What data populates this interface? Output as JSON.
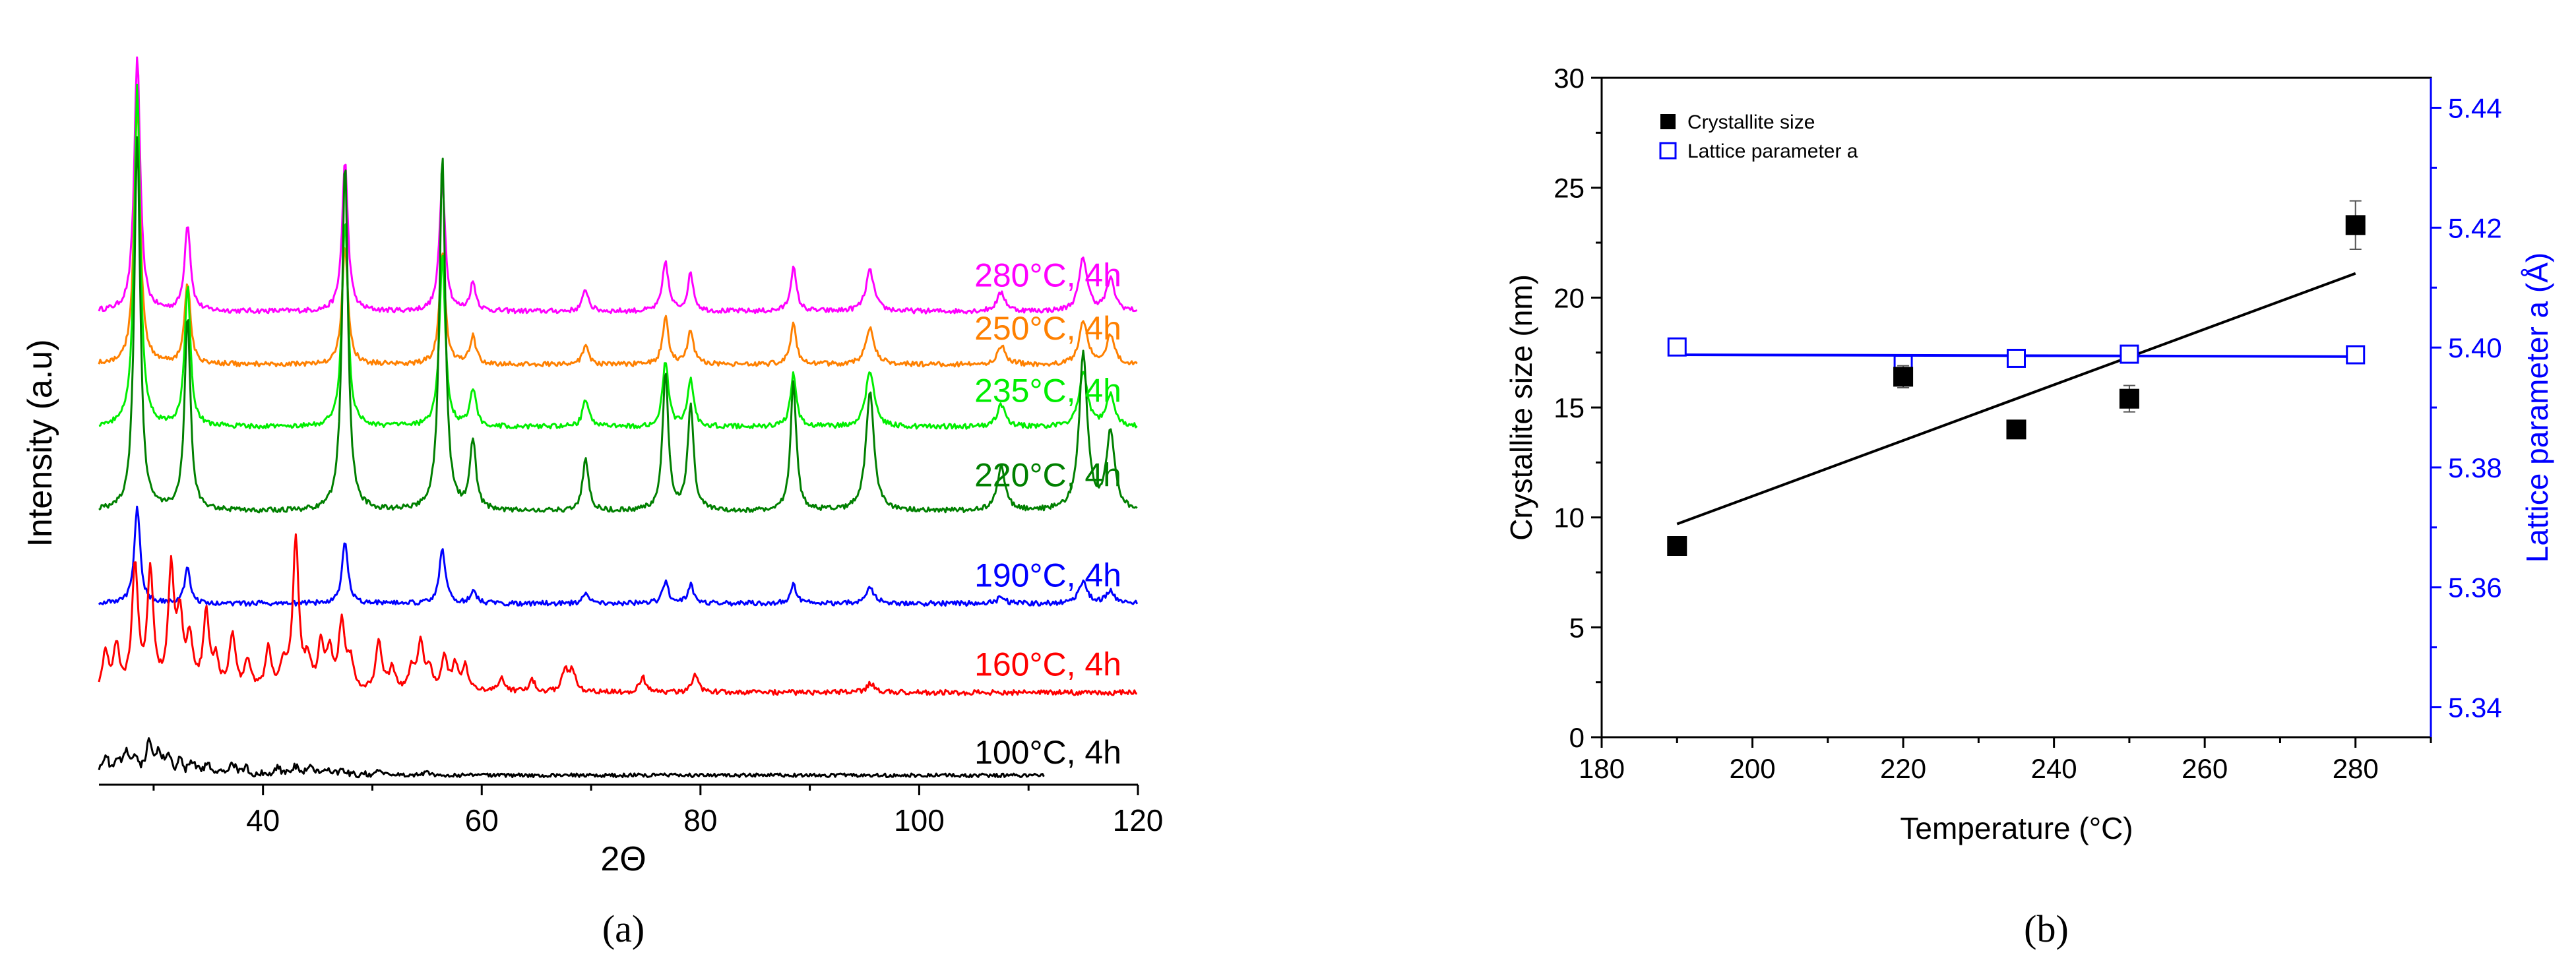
{
  "chart_data": [
    {
      "type": "line",
      "panel_label": "(a)",
      "xlabel": "2Θ",
      "ylabel": "Intensity (a.u)",
      "xlim": [
        25,
        120
      ],
      "x_ticks": [
        40,
        60,
        80,
        100,
        120
      ],
      "series": [
        {
          "name": "280°C, 4h",
          "color": "#ff00ff",
          "baseline": 0.875,
          "end_x": 120,
          "peaks": [
            [
              28.5,
              0.82
            ],
            [
              33.1,
              0.28
            ],
            [
              47.5,
              0.48
            ],
            [
              56.4,
              0.42
            ],
            [
              59.2,
              0.09
            ],
            [
              69.5,
              0.07
            ],
            [
              76.8,
              0.16
            ],
            [
              79.1,
              0.12
            ],
            [
              88.5,
              0.14
            ],
            [
              95.5,
              0.13
            ],
            [
              107.5,
              0.06
            ],
            [
              115.0,
              0.17
            ],
            [
              117.5,
              0.1
            ]
          ]
        },
        {
          "name": "250°C, 4h",
          "color": "#ff8000",
          "baseline": 0.705,
          "end_x": 120,
          "peaks": [
            [
              28.5,
              0.85
            ],
            [
              33.1,
              0.26
            ],
            [
              47.5,
              0.38
            ],
            [
              56.4,
              0.36
            ],
            [
              59.2,
              0.09
            ],
            [
              69.5,
              0.06
            ],
            [
              76.8,
              0.15
            ],
            [
              79.1,
              0.11
            ],
            [
              88.5,
              0.13
            ],
            [
              95.5,
              0.12
            ],
            [
              107.5,
              0.06
            ],
            [
              115.0,
              0.14
            ],
            [
              117.5,
              0.09
            ]
          ]
        },
        {
          "name": "235°C, 4h",
          "color": "#00ee00",
          "baseline": 0.505,
          "end_x": 120,
          "peaks": [
            [
              28.5,
              1.1
            ],
            [
              33.1,
              0.45
            ],
            [
              47.5,
              0.67
            ],
            [
              56.4,
              0.55
            ],
            [
              59.2,
              0.12
            ],
            [
              69.5,
              0.09
            ],
            [
              76.8,
              0.21
            ],
            [
              79.1,
              0.15
            ],
            [
              88.5,
              0.17
            ],
            [
              95.5,
              0.18
            ],
            [
              107.5,
              0.07
            ],
            [
              115.0,
              0.18
            ],
            [
              117.5,
              0.1
            ]
          ]
        },
        {
          "name": "220°C, 4h",
          "color": "#008000",
          "baseline": 0.235,
          "end_x": 120,
          "peaks": [
            [
              28.5,
              1.2
            ],
            [
              33.1,
              0.62
            ],
            [
              47.5,
              1.12
            ],
            [
              56.4,
              1.15
            ],
            [
              59.2,
              0.22
            ],
            [
              69.5,
              0.17
            ],
            [
              76.8,
              0.44
            ],
            [
              79.1,
              0.34
            ],
            [
              88.5,
              0.41
            ],
            [
              95.5,
              0.38
            ],
            [
              107.5,
              0.14
            ],
            [
              115.0,
              0.5
            ],
            [
              117.5,
              0.25
            ]
          ]
        },
        {
          "name": "190°C, 4h",
          "color": "#0000ff",
          "baseline": -0.06,
          "end_x": 120,
          "peaks": [
            [
              28.5,
              0.31
            ],
            [
              33.1,
              0.11
            ],
            [
              47.5,
              0.2
            ],
            [
              56.4,
              0.18
            ],
            [
              59.2,
              0.04
            ],
            [
              69.5,
              0.03
            ],
            [
              76.8,
              0.07
            ],
            [
              79.1,
              0.06
            ],
            [
              88.5,
              0.06
            ],
            [
              95.5,
              0.05
            ],
            [
              107.5,
              0.02
            ],
            [
              115.0,
              0.07
            ],
            [
              117.5,
              0.04
            ]
          ]
        },
        {
          "name": "160°C, 4h",
          "color": "#ff0000",
          "baseline": -0.345,
          "end_x": 120,
          "peaks": [
            [
              25.6,
              0.12
            ],
            [
              26.6,
              0.14
            ],
            [
              28.3,
              0.4
            ],
            [
              29.7,
              0.38
            ],
            [
              31.6,
              0.38
            ],
            [
              32.4,
              0.22
            ],
            [
              33.3,
              0.16
            ],
            [
              34.8,
              0.24
            ],
            [
              35.7,
              0.09
            ],
            [
              37.2,
              0.18
            ],
            [
              38.6,
              0.09
            ],
            [
              40.5,
              0.13
            ],
            [
              41.9,
              0.08
            ],
            [
              43.0,
              0.48
            ],
            [
              44.1,
              0.09
            ],
            [
              45.3,
              0.14
            ],
            [
              46.1,
              0.12
            ],
            [
              47.2,
              0.22
            ],
            [
              48.0,
              0.09
            ],
            [
              50.6,
              0.16
            ],
            [
              51.8,
              0.07
            ],
            [
              53.6,
              0.07
            ],
            [
              54.4,
              0.15
            ],
            [
              55.2,
              0.07
            ],
            [
              56.6,
              0.11
            ],
            [
              57.6,
              0.08
            ],
            [
              58.5,
              0.08
            ],
            [
              61.8,
              0.05
            ],
            [
              64.6,
              0.04
            ],
            [
              67.6,
              0.07
            ],
            [
              68.3,
              0.07
            ],
            [
              74.7,
              0.05
            ],
            [
              79.5,
              0.06
            ],
            [
              95.6,
              0.03
            ]
          ]
        },
        {
          "name": "100°C, 4h",
          "color": "#000000",
          "baseline": -0.61,
          "end_x": 111.5,
          "peaks": [
            [
              25.6,
              0.06
            ],
            [
              26.6,
              0.04
            ],
            [
              27.5,
              0.07
            ],
            [
              28.3,
              0.05
            ],
            [
              29.6,
              0.1
            ],
            [
              30.5,
              0.06
            ],
            [
              31.3,
              0.05
            ],
            [
              32.4,
              0.04
            ],
            [
              33.6,
              0.04
            ],
            [
              35.0,
              0.03
            ],
            [
              37.2,
              0.04
            ],
            [
              38.5,
              0.02
            ],
            [
              41.4,
              0.02
            ],
            [
              43.0,
              0.03
            ],
            [
              44.3,
              0.03
            ],
            [
              45.8,
              0.02
            ],
            [
              47.3,
              0.02
            ],
            [
              50.5,
              0.015
            ],
            [
              55.0,
              0.01
            ]
          ]
        }
      ]
    },
    {
      "type": "scatter",
      "panel_label": "(b)",
      "xlabel": "Temperature (°C)",
      "ylabel": "Crystallite size (nm)",
      "ylabel_right": "Lattice parameter a (Å)",
      "xlim": [
        180,
        290
      ],
      "ylim": [
        0,
        30
      ],
      "ylim_right": [
        5.335,
        5.445
      ],
      "x_ticks": [
        180,
        200,
        220,
        240,
        260,
        280
      ],
      "y_ticks": [
        0,
        5,
        10,
        15,
        20,
        25,
        30
      ],
      "y_ticks_right": [
        "5.34",
        "5.36",
        "5.38",
        "5.40",
        "5.42",
        "5.44"
      ],
      "legend": {
        "placement": "top-left",
        "entries": [
          "Crystallite size",
          "Lattice parameter a"
        ]
      },
      "crystallite_size": {
        "color": "#000000",
        "x": [
          190,
          220,
          235,
          250,
          280
        ],
        "y": [
          8.7,
          16.4,
          14.0,
          15.4,
          23.3
        ],
        "err": [
          0.4,
          0.5,
          0.4,
          0.6,
          1.1
        ],
        "fit": [
          [
            190,
            9.7
          ],
          [
            280,
            21.1
          ]
        ]
      },
      "lattice_parameter": {
        "color": "#0000ff",
        "x": [
          190,
          220,
          235,
          250,
          280
        ],
        "y": [
          5.4001,
          5.3972,
          5.3982,
          5.3989,
          5.3988
        ],
        "err": [
          0.0012,
          0.0015,
          0.0014,
          0.0013,
          0.0014
        ],
        "fit": [
          [
            190,
            5.3988
          ],
          [
            280,
            5.3985
          ]
        ]
      }
    }
  ]
}
